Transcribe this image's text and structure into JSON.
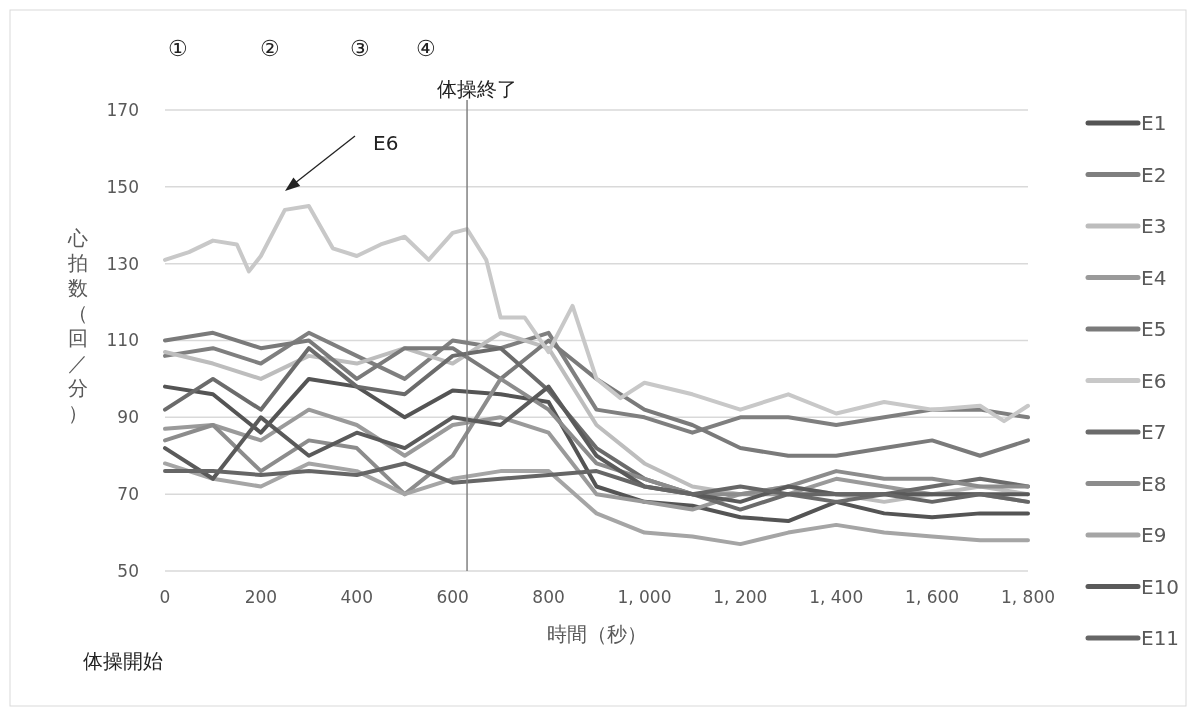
{
  "chart_data": {
    "type": "line",
    "xlabel": "時間（秒）",
    "ylabel": "心拍数（回／分）",
    "x": [
      0,
      100,
      200,
      300,
      400,
      500,
      600,
      700,
      800,
      900,
      1000,
      1100,
      1200,
      1300,
      1400,
      1500,
      1600,
      1700,
      1800
    ],
    "xlim": [
      0,
      1800
    ],
    "xticks": [
      0,
      200,
      400,
      600,
      800,
      {
        "value": 1000,
        "label": "1, 000"
      },
      {
        "value": 1200,
        "label": "1, 200"
      },
      {
        "value": 1400,
        "label": "1, 400"
      },
      {
        "value": 1600,
        "label": "1, 600"
      },
      {
        "value": 1800,
        "label": "1, 800"
      }
    ],
    "ylim": [
      50,
      170
    ],
    "yticks": [
      50,
      70,
      90,
      110,
      130,
      150,
      170
    ],
    "grid": "y",
    "legend": "right",
    "marker": "none",
    "line_style": "solid",
    "ref_lines": [
      {
        "axis": "x",
        "value": 630,
        "label": "体操終了",
        "color": "#808080"
      }
    ],
    "annotations": [
      "①",
      "②",
      "③",
      "④",
      "E6",
      "体操開始"
    ],
    "series": [
      {
        "name": "E1",
        "color": "#545454",
        "values": [
          98,
          96,
          86,
          100,
          98,
          90,
          97,
          96,
          94,
          72,
          68,
          67,
          64,
          63,
          68,
          65,
          64,
          65,
          65
        ]
      },
      {
        "name": "E2",
        "color": "#7f7f7f",
        "values": [
          106,
          108,
          104,
          112,
          106,
          100,
          110,
          108,
          112,
          92,
          90,
          86,
          90,
          90,
          88,
          90,
          92,
          92,
          90
        ]
      },
      {
        "name": "E3",
        "color": "#bdbdbd",
        "values": [
          107,
          104,
          100,
          106,
          104,
          108,
          104,
          112,
          108,
          88,
          78,
          72,
          70,
          72,
          70,
          68,
          70,
          72,
          70
        ]
      },
      {
        "name": "E4",
        "color": "#9a9a9a",
        "values": [
          87,
          88,
          84,
          92,
          88,
          80,
          88,
          90,
          86,
          70,
          68,
          66,
          70,
          70,
          74,
          72,
          70,
          70,
          68
        ]
      },
      {
        "name": "E5",
        "color": "#7a7a7a",
        "values": [
          110,
          112,
          108,
          110,
          100,
          108,
          108,
          100,
          110,
          100,
          92,
          88,
          82,
          80,
          80,
          82,
          84,
          80,
          84
        ]
      },
      {
        "name": "E6",
        "color": "#c8c8c8",
        "x": [
          0,
          50,
          100,
          150,
          175,
          200,
          250,
          300,
          350,
          400,
          450,
          500,
          550,
          600,
          630,
          670,
          700,
          750,
          800,
          850,
          900,
          950,
          1000,
          1100,
          1200,
          1300,
          1400,
          1500,
          1600,
          1700,
          1750,
          1800
        ],
        "values": [
          131,
          133,
          136,
          135,
          128,
          132,
          144,
          145,
          134,
          132,
          135,
          137,
          131,
          138,
          139,
          131,
          116,
          116,
          107,
          119,
          100,
          95,
          99,
          96,
          92,
          96,
          91,
          94,
          92,
          93,
          89,
          93
        ]
      },
      {
        "name": "E7",
        "color": "#6b6b6b",
        "values": [
          92,
          100,
          92,
          108,
          98,
          96,
          106,
          108,
          97,
          82,
          74,
          70,
          66,
          70,
          68,
          70,
          72,
          74,
          72
        ]
      },
      {
        "name": "E8",
        "color": "#8c8c8c",
        "values": [
          84,
          88,
          76,
          84,
          82,
          70,
          80,
          100,
          92,
          78,
          74,
          70,
          70,
          72,
          76,
          74,
          74,
          72,
          72
        ]
      },
      {
        "name": "E9",
        "color": "#a5a5a5",
        "values": [
          78,
          74,
          72,
          78,
          76,
          70,
          74,
          76,
          76,
          65,
          60,
          59,
          57,
          60,
          62,
          60,
          59,
          58,
          58
        ]
      },
      {
        "name": "E10",
        "color": "#5a5a5a",
        "values": [
          82,
          74,
          90,
          80,
          86,
          82,
          90,
          88,
          98,
          80,
          72,
          70,
          68,
          72,
          70,
          70,
          70,
          70,
          70
        ]
      },
      {
        "name": "E11",
        "color": "#666666",
        "values": [
          76,
          76,
          75,
          76,
          75,
          78,
          73,
          74,
          75,
          76,
          72,
          70,
          72,
          70,
          70,
          70,
          68,
          70,
          68
        ]
      }
    ]
  }
}
